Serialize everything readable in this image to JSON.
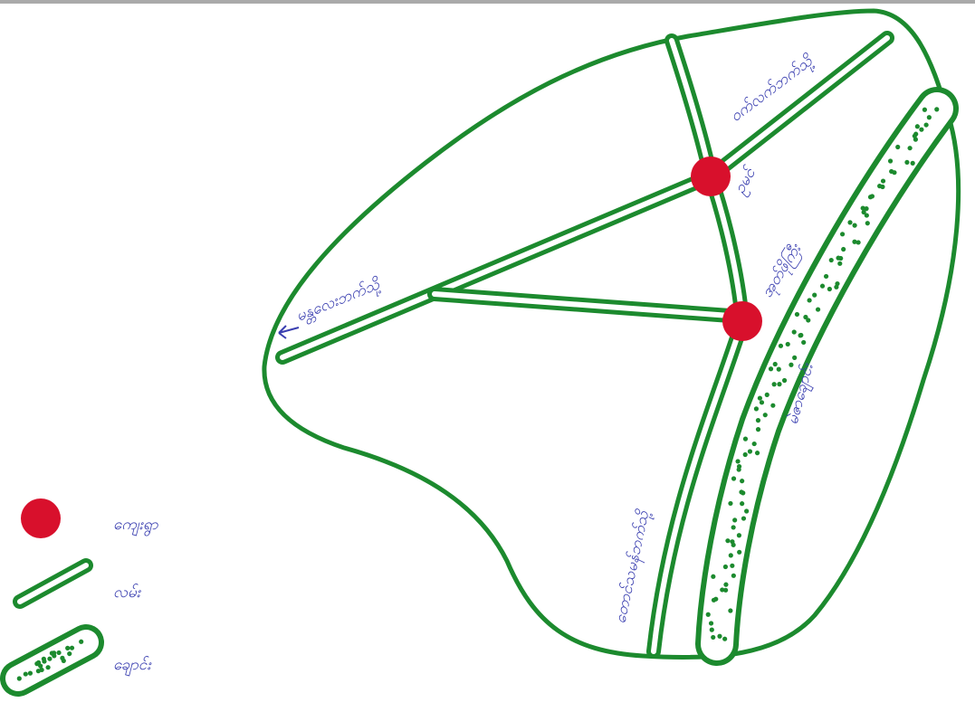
{
  "map": {
    "labels": {
      "road_west": "မန္တလေးဘက်သို့",
      "road_northeast": "ဝက်လက်ဘက်သို့",
      "road_south": "တောင်သမန်ဘက်သို့",
      "village_north": "ဥမင်",
      "village_south": "အုတ်ဖိုကြီး",
      "stream": "မဲဇာချောင်း"
    },
    "legend": [
      {
        "symbol": "village",
        "label": "ကျေးရွာ"
      },
      {
        "symbol": "road",
        "label": "လမ်း"
      },
      {
        "symbol": "stream",
        "label": "ချောင်း"
      }
    ]
  }
}
